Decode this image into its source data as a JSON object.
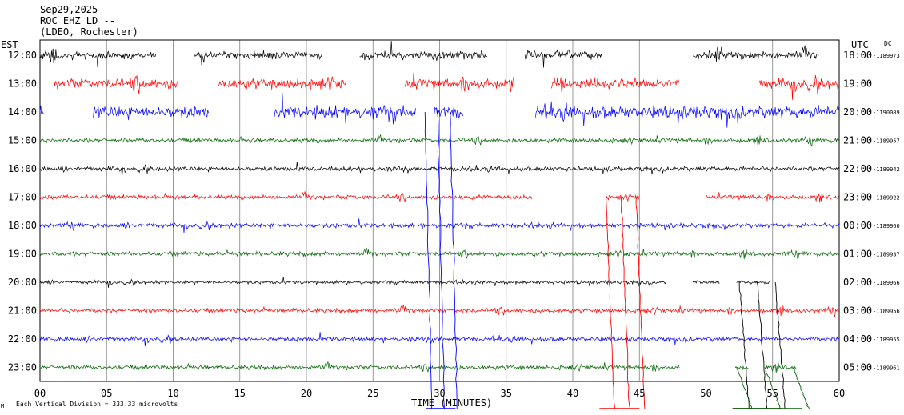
{
  "chart_data": {
    "type": "line",
    "title_lines": [
      "Sep29,2025",
      "ROC EHZ LD --",
      "(LDEO, Rochester)"
    ],
    "left_axis_title": "EST",
    "right_axis_title": "UTC",
    "dc_label": "DC",
    "xlabel": "TIME (MINUTES)",
    "x_ticks": [
      "00",
      "05",
      "10",
      "15",
      "20",
      "25",
      "30",
      "35",
      "40",
      "45",
      "50",
      "55",
      "60"
    ],
    "xlim": [
      0,
      60
    ],
    "grid": true,
    "scale_note": "Each Vertical Division =  333.33 microvolts",
    "row_colors": [
      "#000000",
      "#ff0000",
      "#0000ff",
      "#006400"
    ],
    "rows": [
      {
        "est": "12:00",
        "utc": "18:00",
        "dc": "-1189973",
        "amp": 7,
        "segments": [
          [
            0,
            8.8
          ],
          [
            11.6,
            21.2
          ],
          [
            24.0,
            33.6
          ],
          [
            36.4,
            42.2
          ],
          [
            49.0,
            58.5
          ]
        ]
      },
      {
        "est": "13:00",
        "utc": "19:00",
        "dc": "",
        "amp": 9,
        "segments": [
          [
            1.0,
            10.4
          ],
          [
            13.4,
            23.0
          ],
          [
            27.4,
            35.6
          ],
          [
            38.4,
            48.0
          ],
          [
            54.0,
            60.0
          ]
        ]
      },
      {
        "est": "14:00",
        "utc": "20:00",
        "dc": "-1190089",
        "amp": 11,
        "segments": [
          [
            0,
            0.3
          ],
          [
            4.0,
            12.7
          ],
          [
            17.6,
            28.2
          ],
          [
            29.6,
            31.8
          ],
          [
            37.2,
            60.0
          ]
        ]
      },
      {
        "est": "15:00",
        "utc": "21:00",
        "dc": "-1189957",
        "amp": 4,
        "segments": [
          [
            0,
            60.0
          ]
        ]
      },
      {
        "est": "16:00",
        "utc": "22:00",
        "dc": "-1189942",
        "amp": 4,
        "segments": [
          [
            0,
            60.0
          ]
        ]
      },
      {
        "est": "17:00",
        "utc": "23:00",
        "dc": "-1189922",
        "amp": 4,
        "segments": [
          [
            0,
            37.0
          ],
          [
            42.4,
            45.0
          ],
          [
            50.0,
            60.0
          ]
        ]
      },
      {
        "est": "18:00",
        "utc": "00:00",
        "dc": "-1189960",
        "amp": 4,
        "segments": [
          [
            0,
            60.0
          ]
        ]
      },
      {
        "est": "19:00",
        "utc": "01:00",
        "dc": "-1189937",
        "amp": 4,
        "segments": [
          [
            0,
            60.0
          ]
        ]
      },
      {
        "est": "20:00",
        "utc": "02:00",
        "dc": "-1189966",
        "amp": 3,
        "segments": [
          [
            0,
            47.0
          ],
          [
            49.0,
            51.0
          ],
          [
            52.3,
            54.8
          ]
        ]
      },
      {
        "est": "21:00",
        "utc": "03:00",
        "dc": "-1189956",
        "amp": 4,
        "segments": [
          [
            0,
            60.0
          ]
        ]
      },
      {
        "est": "22:00",
        "utc": "04:00",
        "dc": "-1189955",
        "amp": 4,
        "segments": [
          [
            0,
            60.0
          ]
        ]
      },
      {
        "est": "23:00",
        "utc": "05:00",
        "dc": "-1189961",
        "amp": 4,
        "segments": [
          [
            0,
            48.0
          ],
          [
            52.2,
            53.2
          ],
          [
            54.4,
            56.8
          ]
        ]
      }
    ],
    "clipped_traces": [
      {
        "color": "#0000ff",
        "from_row": 2,
        "x_start": 28.9,
        "x_end": 31.0,
        "min_x": 29.0,
        "max_x": 31.2
      },
      {
        "color": "#ff0000",
        "from_row": 5,
        "x_start": 42.5,
        "x_end": 45.0,
        "min_x": 42.0,
        "max_x": 45.0
      },
      {
        "color": "#000000",
        "from_row": 8,
        "x_start": 52.5,
        "x_end": 55.5,
        "min_x": 52.0,
        "max_x": 55.7
      },
      {
        "color": "#006400",
        "from_row": 11,
        "x_start": 52.3,
        "x_end": 57.0,
        "min_x": 52.0,
        "max_x": 57.2
      }
    ]
  }
}
